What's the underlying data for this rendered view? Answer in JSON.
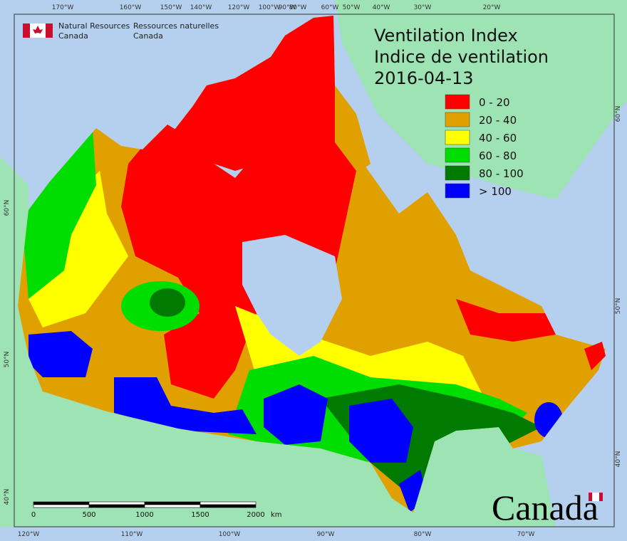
{
  "header": {
    "agency_en": [
      "Natural Resources",
      "Canada"
    ],
    "agency_fr": [
      "Ressources naturelles",
      "Canada"
    ]
  },
  "title": {
    "lines": [
      "Ventilation Index",
      "Indice de ventilation",
      "2016-04-13"
    ]
  },
  "legend": {
    "items": [
      {
        "label": "0 - 20",
        "color": "#ff0000"
      },
      {
        "label": "20 - 40",
        "color": "#e0a000"
      },
      {
        "label": "40 - 60",
        "color": "#ffff00"
      },
      {
        "label": "60 - 80",
        "color": "#00dd00"
      },
      {
        "label": "80 - 100",
        "color": "#007a00"
      },
      {
        "label": "> 100",
        "color": "#0000ff"
      }
    ]
  },
  "graticule": {
    "top": [
      "170°W",
      "160°W",
      "150°W",
      "140°W",
      "120°W",
      "100°W",
      "90°W",
      "80°W",
      "60°W",
      "50°W",
      "40°W",
      "30°W",
      "20°W"
    ],
    "bottom": [
      "120°W",
      "110°W",
      "100°W",
      "90°W",
      "80°W",
      "70°W"
    ],
    "left": [
      "60°N",
      "50°N",
      "40°N"
    ],
    "right": [
      "60°N",
      "50°N",
      "40°N"
    ]
  },
  "scale_bar": {
    "labels": [
      "0",
      "500",
      "1000",
      "1500",
      "2000"
    ],
    "unit": "km"
  },
  "wordmark": "Canada"
}
